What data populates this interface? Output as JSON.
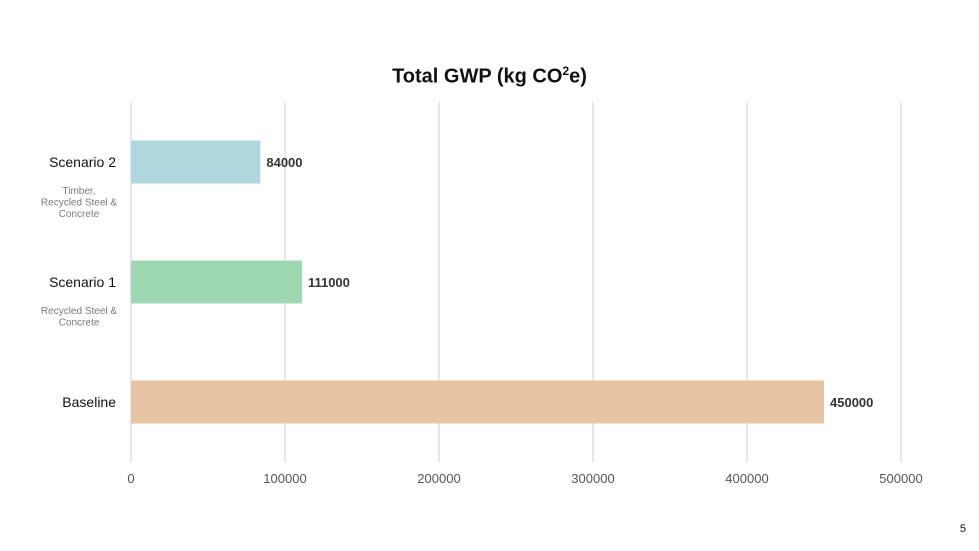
{
  "page": {
    "number": "5"
  },
  "chart_data": {
    "type": "bar",
    "orientation": "horizontal",
    "title": "Total GWP (kg CO",
    "title_superscript": "2",
    "title_suffix": "e)",
    "categories": [
      "Scenario 2",
      "Scenario 1",
      "Baseline"
    ],
    "subtitles": [
      "Timber,\nRecycled Steel &\nConcrete",
      "Recycled Steel &\nConcrete",
      ""
    ],
    "values": [
      84000,
      111000,
      450000
    ],
    "data_labels": [
      "84000",
      "111000",
      "450000"
    ],
    "colors": [
      "#b0d6de",
      "#9ed8b2",
      "#e6c3a2"
    ],
    "xlim": [
      0,
      500000
    ],
    "xticks": [
      0,
      100000,
      200000,
      300000,
      400000,
      500000
    ],
    "xtick_labels": [
      "0",
      "100000",
      "200000",
      "300000",
      "400000",
      "500000"
    ],
    "grid": true,
    "grid_color": "#dddddd",
    "xlabel": "",
    "ylabel": ""
  }
}
